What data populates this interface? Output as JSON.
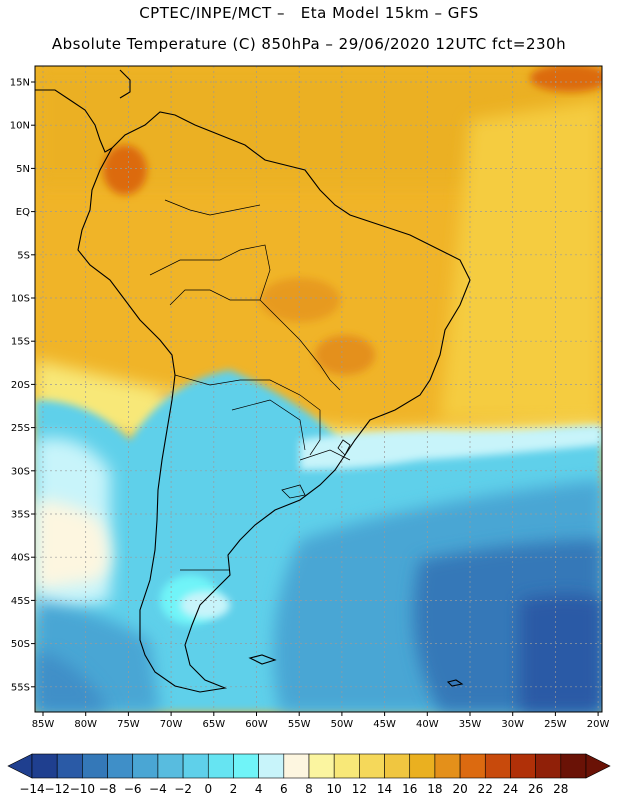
{
  "header": {
    "line1": "CPTEC/INPE/MCT –   Eta Model 15km – GFS",
    "line2": "Absolute Temperature (C) 850hPa – 29/06/2020 12UTC fct=230h"
  },
  "map": {
    "lat_labels": [
      "15N",
      "10N",
      "5N",
      "EQ",
      "5S",
      "10S",
      "15S",
      "20S",
      "25S",
      "30S",
      "35S",
      "40S",
      "45S",
      "50S",
      "55S"
    ],
    "lon_labels": [
      "85W",
      "80W",
      "75W",
      "70W",
      "65W",
      "60W",
      "55W",
      "50W",
      "45W",
      "40W",
      "35W",
      "30W",
      "25W",
      "20W"
    ]
  },
  "colorbar": {
    "labels": [
      "-14",
      "-12",
      "-10",
      "-8",
      "-6",
      "-4",
      "-2",
      "0",
      "2",
      "4",
      "6",
      "8",
      "10",
      "12",
      "14",
      "16",
      "18",
      "20",
      "22",
      "24",
      "26",
      "28"
    ],
    "colors": [
      "#1f3f8f",
      "#2a5aa6",
      "#3478b8",
      "#3f8fc8",
      "#4aa6d4",
      "#58bcdf",
      "#5fd0ea",
      "#66e4f2",
      "#70f4f8",
      "#c8f4fa",
      "#fdf6e0",
      "#fbf5a0",
      "#f8e878",
      "#f5d85a",
      "#f0c640",
      "#eab020",
      "#e4901a",
      "#dc6a10",
      "#c84a0c",
      "#b03008",
      "#902008",
      "#6a1206"
    ]
  }
}
